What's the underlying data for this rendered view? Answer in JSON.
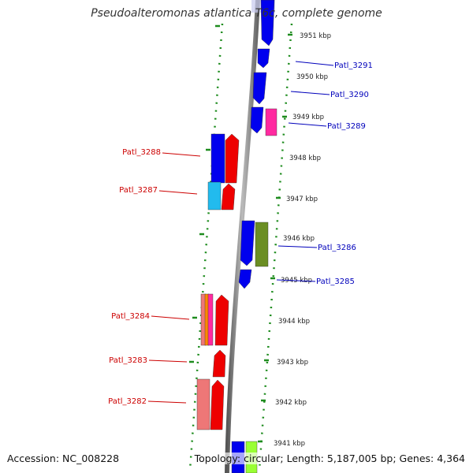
{
  "header": {
    "title": "Pseudoalteromonas atlantica T6c, complete genome"
  },
  "footer": {
    "accession": "Accession: NC_008228",
    "summary": "Topology: circular; Length: 5,187,005 bp; Genes: 4,364"
  },
  "colors": {
    "backbone": "#8a8a8a",
    "tick": "#1e8c1e",
    "label_forward": "#0000bb",
    "label_reverse": "#cc0000",
    "gene_blue": "#0000ee",
    "gene_red": "#ee0000",
    "gene_pink": "#ff2aa0",
    "gene_cyan": "#22bbee",
    "gene_olive": "#6b8e23",
    "gene_salmon": "#ee7777",
    "gene_orange": "#ff8800",
    "gene_lime": "#99ff33",
    "gene_lavender": "#c8cbf0"
  },
  "scale_labels": [
    "3951 kbp",
    "3950 kbp",
    "3949 kbp",
    "3948 kbp",
    "3947 kbp",
    "3946 kbp",
    "3945 kbp",
    "3944 kbp",
    "3943 kbp",
    "3942 kbp",
    "3941 kbp"
  ],
  "gene_labels": [
    "Patl_3291",
    "Patl_3290",
    "Patl_3289",
    "Patl_3288",
    "Patl_3287",
    "Patl_3286",
    "Patl_3285",
    "Patl_3284",
    "Patl_3283",
    "Patl_3282"
  ]
}
